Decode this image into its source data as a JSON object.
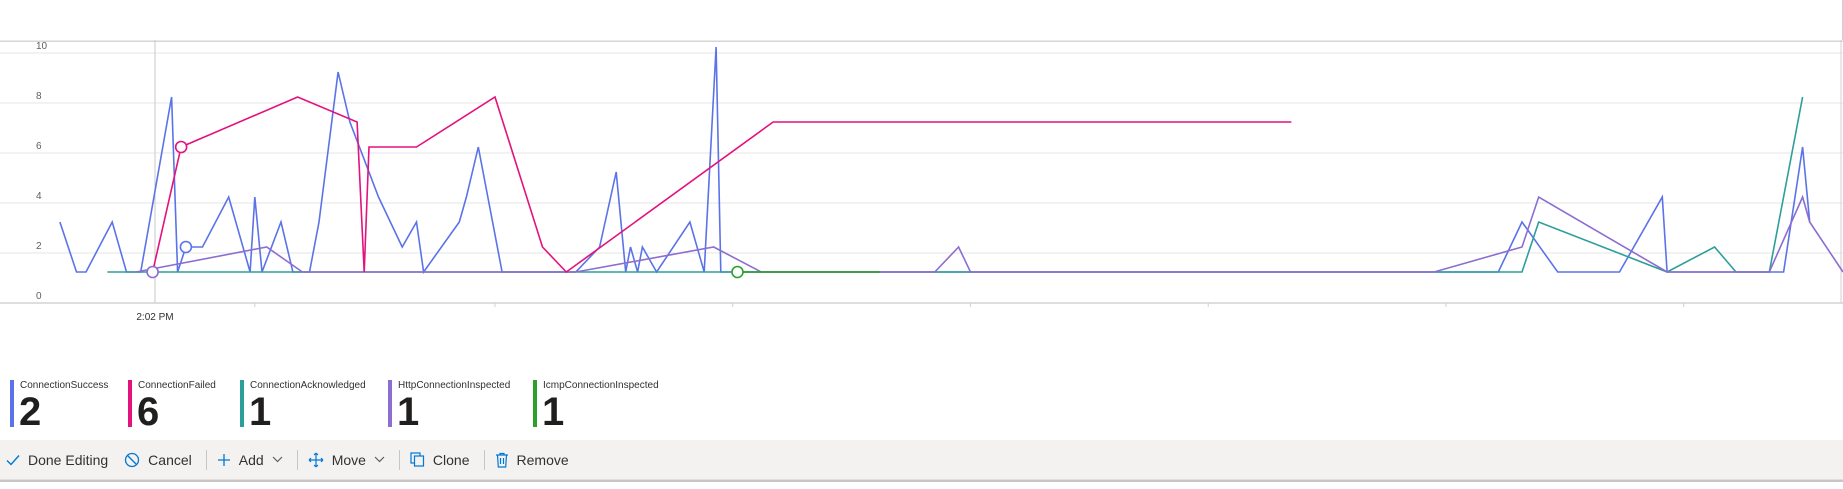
{
  "chart_data": {
    "type": "line",
    "ylim": [
      0,
      10
    ],
    "yticks": [
      0,
      2,
      4,
      6,
      8,
      10
    ],
    "hover_time_label": "2:02 PM",
    "grid": true,
    "series": [
      {
        "name": "ConnectionSuccess",
        "summary": "2",
        "color": "#5b73e8",
        "points": [
          [
            0.0,
            3
          ],
          [
            0.7,
            1
          ],
          [
            1.1,
            1
          ],
          [
            2.2,
            3
          ],
          [
            2.8,
            1
          ],
          [
            3.4,
            1
          ],
          [
            4.7,
            8
          ],
          [
            4.95,
            1
          ],
          [
            5.3,
            2
          ],
          [
            6.0,
            2
          ],
          [
            7.1,
            4
          ],
          [
            8.0,
            1
          ],
          [
            8.2,
            4
          ],
          [
            8.5,
            1
          ],
          [
            9.3,
            3
          ],
          [
            9.8,
            1
          ],
          [
            10.5,
            1
          ],
          [
            10.9,
            3
          ],
          [
            11.7,
            9
          ],
          [
            12.2,
            7
          ],
          [
            13.4,
            4
          ],
          [
            14.4,
            2
          ],
          [
            15.0,
            3
          ],
          [
            15.3,
            1
          ],
          [
            16.8,
            3
          ],
          [
            17.1,
            4
          ],
          [
            17.6,
            6
          ],
          [
            18.6,
            1
          ],
          [
            21.7,
            1
          ],
          [
            22.7,
            2
          ],
          [
            23.4,
            5
          ],
          [
            23.8,
            1
          ],
          [
            24.0,
            2
          ],
          [
            24.3,
            1
          ],
          [
            24.5,
            2
          ],
          [
            25.1,
            1
          ],
          [
            26.5,
            3
          ],
          [
            27.1,
            1
          ],
          [
            27.6,
            10
          ],
          [
            27.8,
            1
          ],
          [
            60.5,
            1
          ],
          [
            61.5,
            3
          ],
          [
            63.0,
            1
          ],
          [
            65.6,
            1
          ],
          [
            67.4,
            4
          ],
          [
            67.6,
            1
          ],
          [
            72.5,
            1
          ],
          [
            73.3,
            6
          ],
          [
            73.6,
            3
          ]
        ]
      },
      {
        "name": "ConnectionFailed",
        "summary": "6",
        "color": "#e3127c",
        "points": [
          [
            3.9,
            1
          ],
          [
            5.1,
            6
          ],
          [
            10.0,
            8
          ],
          [
            12.5,
            7
          ],
          [
            12.8,
            1
          ],
          [
            13.0,
            6
          ],
          [
            15.0,
            6
          ],
          [
            18.3,
            8
          ],
          [
            20.3,
            2
          ],
          [
            21.3,
            1
          ],
          [
            30.0,
            7
          ],
          [
            51.8,
            7
          ]
        ]
      },
      {
        "name": "ConnectionAcknowledged",
        "summary": "1",
        "color": "#2e9e9a",
        "points": [
          [
            2.0,
            1
          ],
          [
            61.5,
            1
          ],
          [
            62.2,
            3
          ],
          [
            67.6,
            1
          ],
          [
            69.6,
            2
          ],
          [
            70.5,
            1
          ],
          [
            71.9,
            1
          ],
          [
            73.3,
            8
          ]
        ]
      },
      {
        "name": "HttpConnectionInspected",
        "summary": "1",
        "color": "#8c6dd0",
        "points": [
          [
            3.2,
            1
          ],
          [
            8.7,
            2
          ],
          [
            10.2,
            1
          ],
          [
            21.7,
            1
          ],
          [
            27.5,
            2
          ],
          [
            29.5,
            1
          ],
          [
            36.8,
            1
          ],
          [
            37.8,
            2
          ],
          [
            38.3,
            1
          ],
          [
            57.8,
            1
          ],
          [
            61.5,
            2
          ],
          [
            62.2,
            4
          ],
          [
            67.6,
            1
          ],
          [
            71.9,
            1
          ],
          [
            73.3,
            4
          ],
          [
            73.6,
            3
          ],
          [
            75.0,
            1
          ]
        ]
      },
      {
        "name": "IcmpConnectionInspected",
        "summary": "1",
        "color": "#2ca02c",
        "points": [
          [
            28.5,
            1
          ],
          [
            34.5,
            1
          ]
        ]
      }
    ],
    "markers": [
      {
        "series": "ConnectionSuccess",
        "x": 5.3,
        "y": 2
      },
      {
        "series": "ConnectionFailed",
        "x": 5.1,
        "y": 6
      },
      {
        "series": "HttpConnectionInspected",
        "x": 3.9,
        "y": 1
      },
      {
        "series": "IcmpConnectionInspected",
        "x": 28.5,
        "y": 1
      }
    ]
  },
  "toolbar": {
    "done_label": "Done Editing",
    "cancel_label": "Cancel",
    "add_label": "Add",
    "move_label": "Move",
    "clone_label": "Clone",
    "remove_label": "Remove"
  },
  "icons": {
    "done": "checkmark-icon",
    "cancel": "cancel-icon",
    "add": "plus-icon",
    "move": "move-icon",
    "clone": "clone-icon",
    "remove": "trash-icon"
  }
}
